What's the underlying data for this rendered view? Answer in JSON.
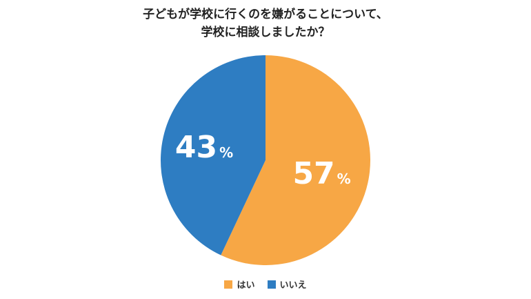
{
  "chart_data": {
    "type": "pie",
    "title_lines": [
      "子どもが学校に行くのを嫌がることについて、",
      "学校に相談しましたか？"
    ],
    "categories": [
      "はい",
      "いいえ"
    ],
    "values": [
      57,
      43
    ],
    "value_unit": "%",
    "colors": [
      "#F7A745",
      "#2E7DC2"
    ],
    "start_angle_deg": 0,
    "direction": "clockwise",
    "legend_position": "bottom"
  }
}
